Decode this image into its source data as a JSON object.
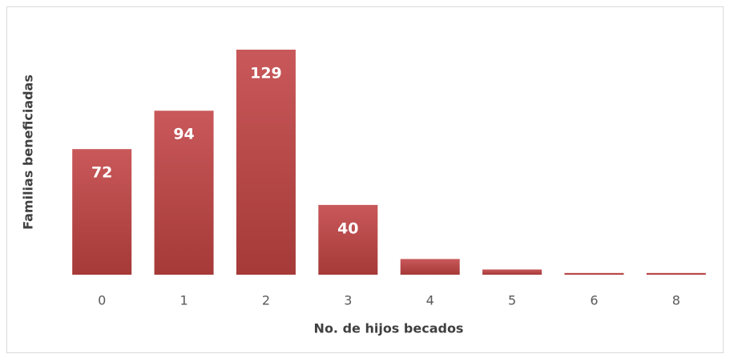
{
  "chart_data": {
    "type": "bar",
    "categories": [
      "0",
      "1",
      "2",
      "3",
      "4",
      "5",
      "6",
      "8"
    ],
    "values": [
      72,
      94,
      129,
      40,
      9,
      3,
      1,
      1
    ],
    "color": "#c0504d",
    "x_label": "No. de hijos becados",
    "y_label": "Familias beneficiadas"
  }
}
